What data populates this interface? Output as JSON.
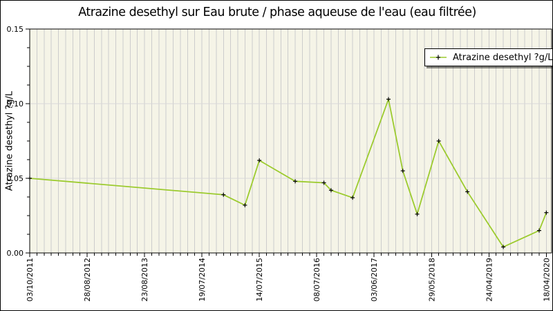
{
  "chart_data": {
    "type": "line",
    "title": "Atrazine desethyl sur Eau brute / phase aqueuse de l'eau (eau filtrée)",
    "ylabel": "Atrazine desethyl ?g/L",
    "legend": {
      "label": "Atrazine desethyl ?g/L",
      "position": "top-right"
    },
    "ylim": [
      0,
      0.15
    ],
    "y_ticks": [
      {
        "value": 0.0,
        "label": "0.00"
      },
      {
        "value": 0.05,
        "label": "0.05"
      },
      {
        "value": 0.1,
        "label": "0.10"
      },
      {
        "value": 0.15,
        "label": "0.15"
      }
    ],
    "y_minor_tick_step": 0.0125,
    "h_gridlines": [
      0.05,
      0.1
    ],
    "x_axis": {
      "samples": 72,
      "gridline_every_sample": true,
      "tick_labels": [
        {
          "sample": 0,
          "label": "03/10/2011"
        },
        {
          "sample": 8,
          "label": "28/08/2012"
        },
        {
          "sample": 16,
          "label": "23/08/2013"
        },
        {
          "sample": 24,
          "label": "19/07/2014"
        },
        {
          "sample": 32,
          "label": "14/07/2015"
        },
        {
          "sample": 40,
          "label": "08/07/2016"
        },
        {
          "sample": 48,
          "label": "03/06/2017"
        },
        {
          "sample": 56,
          "label": "29/05/2018"
        },
        {
          "sample": 64,
          "label": "24/04/2019"
        },
        {
          "sample": 72,
          "label": "18/04/2020"
        }
      ]
    },
    "series": [
      {
        "name": "Atrazine desethyl ?g/L",
        "marker": "plus",
        "points": [
          [
            0,
            0.05
          ],
          [
            27,
            0.039
          ],
          [
            30,
            0.032
          ],
          [
            32,
            0.062
          ],
          [
            37,
            0.048
          ],
          [
            41,
            0.047
          ],
          [
            42,
            0.042
          ],
          [
            45,
            0.037
          ],
          [
            50,
            0.103
          ],
          [
            52,
            0.055
          ],
          [
            54,
            0.026
          ],
          [
            57,
            0.075
          ],
          [
            61,
            0.041
          ],
          [
            66,
            0.004
          ],
          [
            71,
            0.015
          ],
          [
            72,
            0.027
          ]
        ]
      }
    ],
    "colors": {
      "line": "#9ccb2e",
      "marker": "#000000",
      "plot_background": "#f5f4e7",
      "vertical_grid": "#cccccc",
      "horizontal_grid": "#d9d9d9",
      "axis_frame": "#000000",
      "text": "#000000",
      "legend_background": "#ffffff"
    }
  }
}
